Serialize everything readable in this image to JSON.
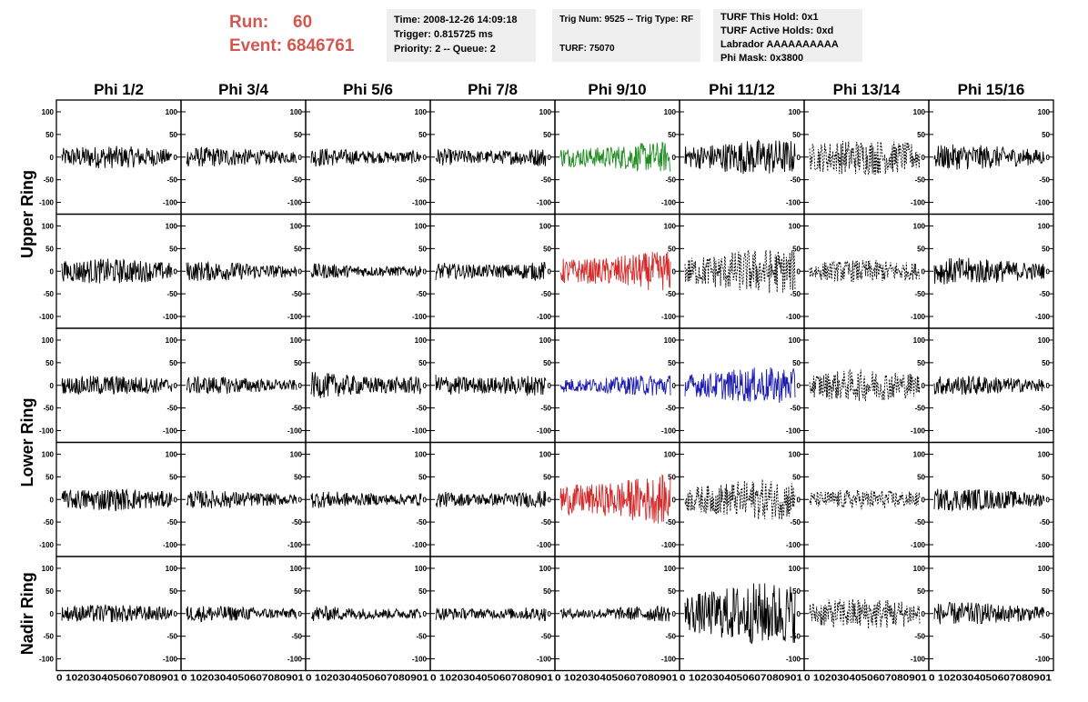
{
  "header": {
    "run_label": "Run:",
    "run_value": "60",
    "event_label": "Event:",
    "event_value": "6846761"
  },
  "info_box_1": {
    "time": "Time: 2008-12-26 14:09:18",
    "trigger": "Trigger: 0.815725 ms",
    "priority": "Priority: 2 -- Queue: 2"
  },
  "info_box_2": {
    "trig": "Trig Num: 9525 -- Trig Type: RF",
    "turf": "TURF: 75070"
  },
  "info_box_3": {
    "this_hold": "TURF This Hold: 0x1",
    "active_holds": "TURF Active Holds: 0xd",
    "labrador": "Labrador AAAAAAAAAA",
    "phi_mask": "Phi Mask: 0x3800"
  },
  "columns": [
    "Phi 1/2",
    "Phi 3/4",
    "Phi 5/6",
    "Phi 7/8",
    "Phi 9/10",
    "Phi 11/12",
    "Phi 13/14",
    "Phi 15/16"
  ],
  "rings": [
    "Upper Ring",
    "Lower Ring",
    "Nadir Ring"
  ],
  "colors": {
    "header_red": "#d4574f",
    "trace_black": "#000000",
    "trace_green": "#1e8c1e",
    "trace_red": "#d42a2a",
    "trace_blue": "#1c1cb0",
    "box_grey": "#efefef"
  },
  "chart_data": {
    "type": "line",
    "grid_rows": 5,
    "grid_cols": 8,
    "ylim": [
      -110,
      110
    ],
    "xlim": [
      0,
      100
    ],
    "y_ticks": [
      "100",
      "50",
      "0",
      "-50",
      "-100"
    ],
    "x_ticks": [
      "0",
      "10",
      "20",
      "30",
      "40",
      "50",
      "60",
      "70",
      "80",
      "90",
      "100"
    ],
    "x_tick_text_per_panel": "0 1020304050607080901",
    "panels": [
      {
        "row": 0,
        "col": 0,
        "color": "trace_black",
        "style": "solid",
        "amp": 25
      },
      {
        "row": 0,
        "col": 1,
        "color": "trace_black",
        "style": "solid",
        "amp": 22
      },
      {
        "row": 0,
        "col": 2,
        "color": "trace_black",
        "style": "solid",
        "amp": 22
      },
      {
        "row": 0,
        "col": 3,
        "color": "trace_black",
        "style": "solid",
        "amp": 24
      },
      {
        "row": 0,
        "col": 4,
        "color": "trace_green",
        "style": "solid",
        "amp": 35
      },
      {
        "row": 0,
        "col": 5,
        "color": "trace_black",
        "style": "solid",
        "amp": 40
      },
      {
        "row": 0,
        "col": 6,
        "color": "trace_black",
        "style": "dashed",
        "amp": 40
      },
      {
        "row": 0,
        "col": 7,
        "color": "trace_black",
        "style": "solid",
        "amp": 28
      },
      {
        "row": 1,
        "col": 0,
        "color": "trace_black",
        "style": "solid",
        "amp": 28
      },
      {
        "row": 1,
        "col": 1,
        "color": "trace_black",
        "style": "solid",
        "amp": 22
      },
      {
        "row": 1,
        "col": 2,
        "color": "trace_black",
        "style": "solid",
        "amp": 18
      },
      {
        "row": 1,
        "col": 3,
        "color": "trace_black",
        "style": "solid",
        "amp": 24
      },
      {
        "row": 1,
        "col": 4,
        "color": "trace_red",
        "style": "solid",
        "amp": 45
      },
      {
        "row": 1,
        "col": 5,
        "color": "trace_black",
        "style": "dashed",
        "amp": 50
      },
      {
        "row": 1,
        "col": 6,
        "color": "trace_black",
        "style": "dashed",
        "amp": 25
      },
      {
        "row": 1,
        "col": 7,
        "color": "trace_black",
        "style": "solid",
        "amp": 30
      },
      {
        "row": 2,
        "col": 0,
        "color": "trace_black",
        "style": "solid",
        "amp": 22
      },
      {
        "row": 2,
        "col": 1,
        "color": "trace_black",
        "style": "solid",
        "amp": 20
      },
      {
        "row": 2,
        "col": 2,
        "color": "trace_black",
        "style": "solid",
        "amp": 30
      },
      {
        "row": 2,
        "col": 3,
        "color": "trace_black",
        "style": "solid",
        "amp": 30
      },
      {
        "row": 2,
        "col": 4,
        "color": "trace_blue",
        "style": "solid",
        "amp": 25
      },
      {
        "row": 2,
        "col": 5,
        "color": "trace_blue",
        "style": "solid",
        "amp": 40
      },
      {
        "row": 2,
        "col": 6,
        "color": "trace_black",
        "style": "dashed",
        "amp": 35
      },
      {
        "row": 2,
        "col": 7,
        "color": "trace_black",
        "style": "solid",
        "amp": 22
      },
      {
        "row": 3,
        "col": 0,
        "color": "trace_black",
        "style": "solid",
        "amp": 25
      },
      {
        "row": 3,
        "col": 1,
        "color": "trace_black",
        "style": "solid",
        "amp": 20
      },
      {
        "row": 3,
        "col": 2,
        "color": "trace_black",
        "style": "solid",
        "amp": 20
      },
      {
        "row": 3,
        "col": 3,
        "color": "trace_black",
        "style": "solid",
        "amp": 22
      },
      {
        "row": 3,
        "col": 4,
        "color": "trace_red",
        "style": "solid",
        "amp": 55
      },
      {
        "row": 3,
        "col": 5,
        "color": "trace_black",
        "style": "dashed",
        "amp": 45
      },
      {
        "row": 3,
        "col": 6,
        "color": "trace_black",
        "style": "dashed",
        "amp": 22
      },
      {
        "row": 3,
        "col": 7,
        "color": "trace_black",
        "style": "solid",
        "amp": 25
      },
      {
        "row": 4,
        "col": 0,
        "color": "trace_black",
        "style": "solid",
        "amp": 20
      },
      {
        "row": 4,
        "col": 1,
        "color": "trace_black",
        "style": "solid",
        "amp": 18
      },
      {
        "row": 4,
        "col": 2,
        "color": "trace_black",
        "style": "solid",
        "amp": 18
      },
      {
        "row": 4,
        "col": 3,
        "color": "trace_black",
        "style": "solid",
        "amp": 18
      },
      {
        "row": 4,
        "col": 4,
        "color": "trace_black",
        "style": "solid",
        "amp": 18
      },
      {
        "row": 4,
        "col": 5,
        "color": "trace_black",
        "style": "solid",
        "amp": 70
      },
      {
        "row": 4,
        "col": 6,
        "color": "trace_black",
        "style": "dashed",
        "amp": 35
      },
      {
        "row": 4,
        "col": 7,
        "color": "trace_black",
        "style": "solid",
        "amp": 25
      }
    ]
  }
}
